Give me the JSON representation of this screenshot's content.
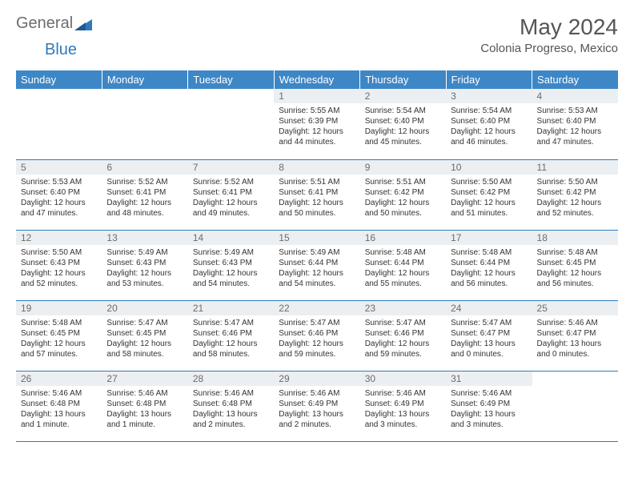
{
  "logo": {
    "text1": "General",
    "text2": "Blue"
  },
  "title": "May 2024",
  "location": "Colonia Progreso, Mexico",
  "colors": {
    "header_bg": "#3d87c7",
    "header_text": "#ffffff",
    "daynum_bg": "#eceff1",
    "daynum_text": "#6b6b6b",
    "body_text": "#333333",
    "row_border": "#2f7abf",
    "page_bg": "#ffffff",
    "logo_gray": "#6d6d6d",
    "logo_blue": "#2f7abf"
  },
  "fonts": {
    "title_pt": 28,
    "location_pt": 15,
    "header_pt": 13,
    "daynum_pt": 12,
    "body_pt": 10
  },
  "weekdays": [
    "Sunday",
    "Monday",
    "Tuesday",
    "Wednesday",
    "Thursday",
    "Friday",
    "Saturday"
  ],
  "layout": {
    "columns": 7,
    "rows": 5,
    "first_weekday_index": 3
  },
  "weeks": [
    [
      null,
      null,
      null,
      {
        "n": "1",
        "sr": "Sunrise: 5:55 AM",
        "ss": "Sunset: 6:39 PM",
        "d1": "Daylight: 12 hours",
        "d2": "and 44 minutes."
      },
      {
        "n": "2",
        "sr": "Sunrise: 5:54 AM",
        "ss": "Sunset: 6:40 PM",
        "d1": "Daylight: 12 hours",
        "d2": "and 45 minutes."
      },
      {
        "n": "3",
        "sr": "Sunrise: 5:54 AM",
        "ss": "Sunset: 6:40 PM",
        "d1": "Daylight: 12 hours",
        "d2": "and 46 minutes."
      },
      {
        "n": "4",
        "sr": "Sunrise: 5:53 AM",
        "ss": "Sunset: 6:40 PM",
        "d1": "Daylight: 12 hours",
        "d2": "and 47 minutes."
      }
    ],
    [
      {
        "n": "5",
        "sr": "Sunrise: 5:53 AM",
        "ss": "Sunset: 6:40 PM",
        "d1": "Daylight: 12 hours",
        "d2": "and 47 minutes."
      },
      {
        "n": "6",
        "sr": "Sunrise: 5:52 AM",
        "ss": "Sunset: 6:41 PM",
        "d1": "Daylight: 12 hours",
        "d2": "and 48 minutes."
      },
      {
        "n": "7",
        "sr": "Sunrise: 5:52 AM",
        "ss": "Sunset: 6:41 PM",
        "d1": "Daylight: 12 hours",
        "d2": "and 49 minutes."
      },
      {
        "n": "8",
        "sr": "Sunrise: 5:51 AM",
        "ss": "Sunset: 6:41 PM",
        "d1": "Daylight: 12 hours",
        "d2": "and 50 minutes."
      },
      {
        "n": "9",
        "sr": "Sunrise: 5:51 AM",
        "ss": "Sunset: 6:42 PM",
        "d1": "Daylight: 12 hours",
        "d2": "and 50 minutes."
      },
      {
        "n": "10",
        "sr": "Sunrise: 5:50 AM",
        "ss": "Sunset: 6:42 PM",
        "d1": "Daylight: 12 hours",
        "d2": "and 51 minutes."
      },
      {
        "n": "11",
        "sr": "Sunrise: 5:50 AM",
        "ss": "Sunset: 6:42 PM",
        "d1": "Daylight: 12 hours",
        "d2": "and 52 minutes."
      }
    ],
    [
      {
        "n": "12",
        "sr": "Sunrise: 5:50 AM",
        "ss": "Sunset: 6:43 PM",
        "d1": "Daylight: 12 hours",
        "d2": "and 52 minutes."
      },
      {
        "n": "13",
        "sr": "Sunrise: 5:49 AM",
        "ss": "Sunset: 6:43 PM",
        "d1": "Daylight: 12 hours",
        "d2": "and 53 minutes."
      },
      {
        "n": "14",
        "sr": "Sunrise: 5:49 AM",
        "ss": "Sunset: 6:43 PM",
        "d1": "Daylight: 12 hours",
        "d2": "and 54 minutes."
      },
      {
        "n": "15",
        "sr": "Sunrise: 5:49 AM",
        "ss": "Sunset: 6:44 PM",
        "d1": "Daylight: 12 hours",
        "d2": "and 54 minutes."
      },
      {
        "n": "16",
        "sr": "Sunrise: 5:48 AM",
        "ss": "Sunset: 6:44 PM",
        "d1": "Daylight: 12 hours",
        "d2": "and 55 minutes."
      },
      {
        "n": "17",
        "sr": "Sunrise: 5:48 AM",
        "ss": "Sunset: 6:44 PM",
        "d1": "Daylight: 12 hours",
        "d2": "and 56 minutes."
      },
      {
        "n": "18",
        "sr": "Sunrise: 5:48 AM",
        "ss": "Sunset: 6:45 PM",
        "d1": "Daylight: 12 hours",
        "d2": "and 56 minutes."
      }
    ],
    [
      {
        "n": "19",
        "sr": "Sunrise: 5:48 AM",
        "ss": "Sunset: 6:45 PM",
        "d1": "Daylight: 12 hours",
        "d2": "and 57 minutes."
      },
      {
        "n": "20",
        "sr": "Sunrise: 5:47 AM",
        "ss": "Sunset: 6:45 PM",
        "d1": "Daylight: 12 hours",
        "d2": "and 58 minutes."
      },
      {
        "n": "21",
        "sr": "Sunrise: 5:47 AM",
        "ss": "Sunset: 6:46 PM",
        "d1": "Daylight: 12 hours",
        "d2": "and 58 minutes."
      },
      {
        "n": "22",
        "sr": "Sunrise: 5:47 AM",
        "ss": "Sunset: 6:46 PM",
        "d1": "Daylight: 12 hours",
        "d2": "and 59 minutes."
      },
      {
        "n": "23",
        "sr": "Sunrise: 5:47 AM",
        "ss": "Sunset: 6:46 PM",
        "d1": "Daylight: 12 hours",
        "d2": "and 59 minutes."
      },
      {
        "n": "24",
        "sr": "Sunrise: 5:47 AM",
        "ss": "Sunset: 6:47 PM",
        "d1": "Daylight: 13 hours",
        "d2": "and 0 minutes."
      },
      {
        "n": "25",
        "sr": "Sunrise: 5:46 AM",
        "ss": "Sunset: 6:47 PM",
        "d1": "Daylight: 13 hours",
        "d2": "and 0 minutes."
      }
    ],
    [
      {
        "n": "26",
        "sr": "Sunrise: 5:46 AM",
        "ss": "Sunset: 6:48 PM",
        "d1": "Daylight: 13 hours",
        "d2": "and 1 minute."
      },
      {
        "n": "27",
        "sr": "Sunrise: 5:46 AM",
        "ss": "Sunset: 6:48 PM",
        "d1": "Daylight: 13 hours",
        "d2": "and 1 minute."
      },
      {
        "n": "28",
        "sr": "Sunrise: 5:46 AM",
        "ss": "Sunset: 6:48 PM",
        "d1": "Daylight: 13 hours",
        "d2": "and 2 minutes."
      },
      {
        "n": "29",
        "sr": "Sunrise: 5:46 AM",
        "ss": "Sunset: 6:49 PM",
        "d1": "Daylight: 13 hours",
        "d2": "and 2 minutes."
      },
      {
        "n": "30",
        "sr": "Sunrise: 5:46 AM",
        "ss": "Sunset: 6:49 PM",
        "d1": "Daylight: 13 hours",
        "d2": "and 3 minutes."
      },
      {
        "n": "31",
        "sr": "Sunrise: 5:46 AM",
        "ss": "Sunset: 6:49 PM",
        "d1": "Daylight: 13 hours",
        "d2": "and 3 minutes."
      },
      null
    ]
  ]
}
